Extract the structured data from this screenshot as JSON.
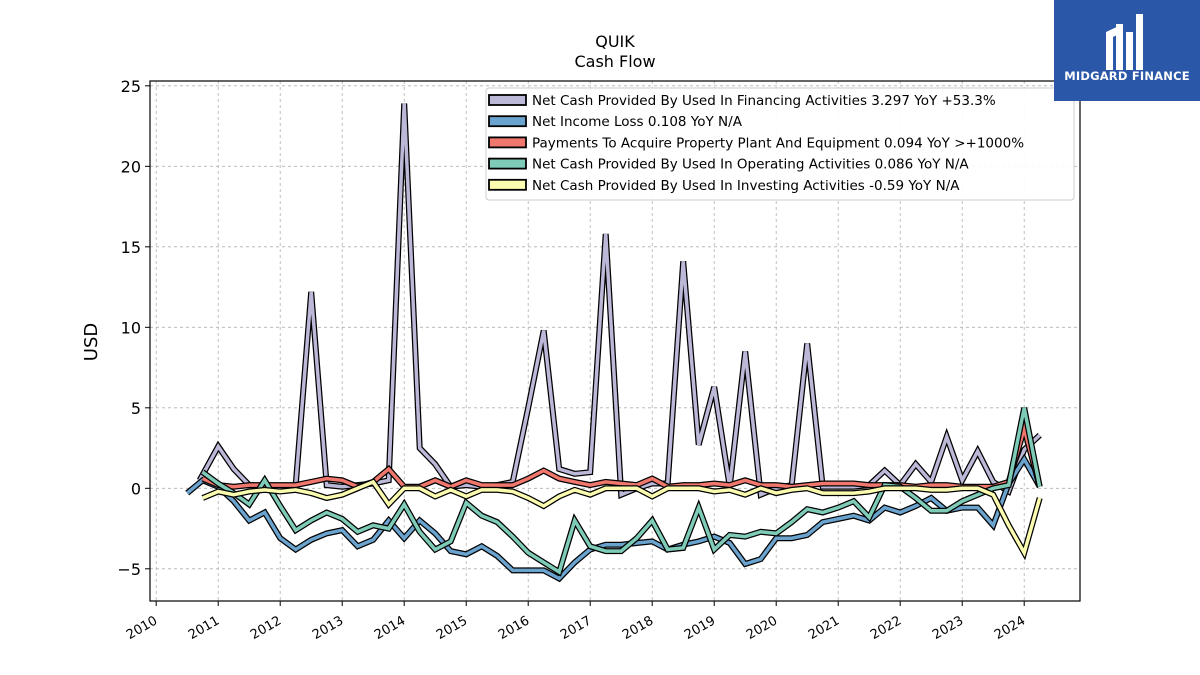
{
  "chart_data": {
    "type": "line",
    "title": "QUIK",
    "subtitle": "Cash Flow",
    "xlabel": "",
    "ylabel": "USD",
    "xlim": [
      2009.9,
      2024.9
    ],
    "ylim": [
      -7,
      25.3
    ],
    "yticks": [
      -5,
      0,
      5,
      10,
      15,
      20,
      25
    ],
    "yticklabels": [
      "−5",
      "0",
      "5",
      "10",
      "15",
      "20",
      "25"
    ],
    "xticks": [
      2010,
      2011,
      2012,
      2013,
      2014,
      2015,
      2016,
      2017,
      2018,
      2019,
      2020,
      2021,
      2022,
      2023,
      2024
    ],
    "xticklabels": [
      "2010",
      "2011",
      "2012",
      "2013",
      "2014",
      "2015",
      "2016",
      "2017",
      "2018",
      "2019",
      "2020",
      "2021",
      "2022",
      "2023",
      "2024"
    ],
    "grid": true,
    "legend_position": "top-right",
    "series": [
      {
        "name": "Net Cash Provided By Used In Financing Activities  3.297 YoY +53.3%",
        "color": "#bcb8d8",
        "points": [
          [
            2010.7,
            0.5
          ],
          [
            2011.0,
            2.6
          ],
          [
            2011.25,
            1.2
          ],
          [
            2011.5,
            0.2
          ],
          [
            2011.75,
            0.1
          ],
          [
            2012.0,
            0.1
          ],
          [
            2012.25,
            0.2
          ],
          [
            2012.5,
            12.2
          ],
          [
            2012.75,
            0.2
          ],
          [
            2013.0,
            0.1
          ],
          [
            2013.25,
            0.2
          ],
          [
            2013.5,
            0.3
          ],
          [
            2013.75,
            0.5
          ],
          [
            2014.0,
            23.9
          ],
          [
            2014.25,
            2.5
          ],
          [
            2014.5,
            1.5
          ],
          [
            2014.75,
            0.1
          ],
          [
            2015.0,
            0.2
          ],
          [
            2015.25,
            0.1
          ],
          [
            2015.5,
            0.2
          ],
          [
            2015.75,
            0.4
          ],
          [
            2016.0,
            5.0
          ],
          [
            2016.25,
            9.8
          ],
          [
            2016.5,
            1.2
          ],
          [
            2016.75,
            0.9
          ],
          [
            2017.0,
            1.0
          ],
          [
            2017.25,
            15.8
          ],
          [
            2017.5,
            -0.4
          ],
          [
            2017.75,
            0.0
          ],
          [
            2018.0,
            0.3
          ],
          [
            2018.25,
            0.3
          ],
          [
            2018.5,
            14.1
          ],
          [
            2018.75,
            2.7
          ],
          [
            2019.0,
            6.3
          ],
          [
            2019.25,
            0.1
          ],
          [
            2019.5,
            8.5
          ],
          [
            2019.75,
            -0.4
          ],
          [
            2020.0,
            0.0
          ],
          [
            2020.25,
            0.2
          ],
          [
            2020.5,
            9.0
          ],
          [
            2020.75,
            0.1
          ],
          [
            2021.0,
            0.1
          ],
          [
            2021.25,
            0.1
          ],
          [
            2021.5,
            0.2
          ],
          [
            2021.75,
            1.1
          ],
          [
            2022.0,
            0.2
          ],
          [
            2022.25,
            1.5
          ],
          [
            2022.5,
            0.4
          ],
          [
            2022.75,
            3.2
          ],
          [
            2023.0,
            0.5
          ],
          [
            2023.25,
            2.3
          ],
          [
            2023.5,
            0.4
          ],
          [
            2023.75,
            -0.2
          ],
          [
            2024.0,
            2.4
          ],
          [
            2024.25,
            3.3
          ]
        ]
      },
      {
        "name": "Net Income Loss  0.108 YoY N/A",
        "color": "#6ba3cf",
        "points": [
          [
            2010.5,
            -0.3
          ],
          [
            2010.75,
            0.5
          ],
          [
            2011.0,
            0.1
          ],
          [
            2011.25,
            -0.8
          ],
          [
            2011.5,
            -2.0
          ],
          [
            2011.75,
            -1.5
          ],
          [
            2012.0,
            -3.1
          ],
          [
            2012.25,
            -3.8
          ],
          [
            2012.5,
            -3.2
          ],
          [
            2012.75,
            -2.8
          ],
          [
            2013.0,
            -2.6
          ],
          [
            2013.25,
            -3.6
          ],
          [
            2013.5,
            -3.2
          ],
          [
            2013.75,
            -2.0
          ],
          [
            2014.0,
            -3.1
          ],
          [
            2014.25,
            -2.0
          ],
          [
            2014.5,
            -2.8
          ],
          [
            2014.75,
            -3.9
          ],
          [
            2015.0,
            -4.1
          ],
          [
            2015.25,
            -3.6
          ],
          [
            2015.5,
            -4.2
          ],
          [
            2015.75,
            -5.1
          ],
          [
            2016.0,
            -5.1
          ],
          [
            2016.25,
            -5.1
          ],
          [
            2016.5,
            -5.6
          ],
          [
            2016.75,
            -4.6
          ],
          [
            2017.0,
            -3.8
          ],
          [
            2017.25,
            -3.5
          ],
          [
            2017.5,
            -3.5
          ],
          [
            2017.75,
            -3.4
          ],
          [
            2018.0,
            -3.3
          ],
          [
            2018.25,
            -3.8
          ],
          [
            2018.5,
            -3.5
          ],
          [
            2018.75,
            -3.3
          ],
          [
            2019.0,
            -3.0
          ],
          [
            2019.25,
            -3.4
          ],
          [
            2019.5,
            -4.7
          ],
          [
            2019.75,
            -4.4
          ],
          [
            2020.0,
            -3.1
          ],
          [
            2020.25,
            -3.1
          ],
          [
            2020.5,
            -2.9
          ],
          [
            2020.75,
            -2.1
          ],
          [
            2021.0,
            -1.9
          ],
          [
            2021.25,
            -1.7
          ],
          [
            2021.5,
            -2.0
          ],
          [
            2021.75,
            -1.2
          ],
          [
            2022.0,
            -1.5
          ],
          [
            2022.25,
            -1.1
          ],
          [
            2022.5,
            -0.6
          ],
          [
            2022.75,
            -1.4
          ],
          [
            2023.0,
            -1.2
          ],
          [
            2023.25,
            -1.2
          ],
          [
            2023.5,
            -2.3
          ],
          [
            2023.75,
            0.3
          ],
          [
            2024.0,
            1.8
          ],
          [
            2024.25,
            0.1
          ]
        ]
      },
      {
        "name": "Payments To Acquire Property Plant And Equipment  0.094 YoY >+1000%",
        "color": "#f0776d",
        "points": [
          [
            2010.75,
            0.6
          ],
          [
            2011.0,
            0.2
          ],
          [
            2011.25,
            0.1
          ],
          [
            2011.5,
            0.2
          ],
          [
            2011.75,
            0.2
          ],
          [
            2012.0,
            0.2
          ],
          [
            2012.25,
            0.2
          ],
          [
            2012.5,
            0.4
          ],
          [
            2012.75,
            0.6
          ],
          [
            2013.0,
            0.5
          ],
          [
            2013.25,
            0.1
          ],
          [
            2013.5,
            0.4
          ],
          [
            2013.75,
            1.2
          ],
          [
            2014.0,
            0.1
          ],
          [
            2014.25,
            0.1
          ],
          [
            2014.5,
            0.5
          ],
          [
            2014.75,
            0.1
          ],
          [
            2015.0,
            0.5
          ],
          [
            2015.25,
            0.2
          ],
          [
            2015.5,
            0.2
          ],
          [
            2015.75,
            0.2
          ],
          [
            2016.0,
            0.6
          ],
          [
            2016.25,
            1.1
          ],
          [
            2016.5,
            0.6
          ],
          [
            2016.75,
            0.4
          ],
          [
            2017.0,
            0.2
          ],
          [
            2017.25,
            0.4
          ],
          [
            2017.5,
            0.3
          ],
          [
            2017.75,
            0.2
          ],
          [
            2018.0,
            0.6
          ],
          [
            2018.25,
            0.1
          ],
          [
            2018.5,
            0.2
          ],
          [
            2018.75,
            0.2
          ],
          [
            2019.0,
            0.3
          ],
          [
            2019.25,
            0.2
          ],
          [
            2019.5,
            0.5
          ],
          [
            2019.75,
            0.2
          ],
          [
            2020.0,
            0.2
          ],
          [
            2020.25,
            0.1
          ],
          [
            2020.5,
            0.2
          ],
          [
            2020.75,
            0.3
          ],
          [
            2021.0,
            0.3
          ],
          [
            2021.25,
            0.3
          ],
          [
            2021.5,
            0.2
          ],
          [
            2021.75,
            0.2
          ],
          [
            2022.0,
            0.2
          ],
          [
            2022.25,
            0.1
          ],
          [
            2022.5,
            0.2
          ],
          [
            2022.75,
            0.2
          ],
          [
            2023.0,
            0.1
          ],
          [
            2023.25,
            0.1
          ],
          [
            2023.5,
            0.1
          ],
          [
            2023.75,
            0.4
          ],
          [
            2024.0,
            3.7
          ],
          [
            2024.25,
            0.1
          ]
        ]
      },
      {
        "name": "Net Cash Provided By Used In Operating Activities  0.086 YoY N/A",
        "color": "#7ecbb8",
        "points": [
          [
            2010.75,
            1.0
          ],
          [
            2011.0,
            0.3
          ],
          [
            2011.25,
            -0.3
          ],
          [
            2011.5,
            -1.0
          ],
          [
            2011.75,
            0.5
          ],
          [
            2012.0,
            -1.1
          ],
          [
            2012.25,
            -2.6
          ],
          [
            2012.5,
            -2.0
          ],
          [
            2012.75,
            -1.5
          ],
          [
            2013.0,
            -1.9
          ],
          [
            2013.25,
            -2.7
          ],
          [
            2013.5,
            -2.3
          ],
          [
            2013.75,
            -2.5
          ],
          [
            2014.0,
            -1.0
          ],
          [
            2014.25,
            -2.7
          ],
          [
            2014.5,
            -3.8
          ],
          [
            2014.75,
            -3.3
          ],
          [
            2015.0,
            -0.9
          ],
          [
            2015.25,
            -1.7
          ],
          [
            2015.5,
            -2.1
          ],
          [
            2015.75,
            -3.0
          ],
          [
            2016.0,
            -4.0
          ],
          [
            2016.25,
            -4.6
          ],
          [
            2016.5,
            -5.2
          ],
          [
            2016.75,
            -2.0
          ],
          [
            2017.0,
            -3.6
          ],
          [
            2017.25,
            -3.9
          ],
          [
            2017.5,
            -3.9
          ],
          [
            2017.75,
            -3.1
          ],
          [
            2018.0,
            -2.0
          ],
          [
            2018.25,
            -3.8
          ],
          [
            2018.5,
            -3.7
          ],
          [
            2018.75,
            -1.2
          ],
          [
            2019.0,
            -3.8
          ],
          [
            2019.25,
            -2.9
          ],
          [
            2019.5,
            -3.0
          ],
          [
            2019.75,
            -2.7
          ],
          [
            2020.0,
            -2.8
          ],
          [
            2020.25,
            -2.1
          ],
          [
            2020.5,
            -1.3
          ],
          [
            2020.75,
            -1.5
          ],
          [
            2021.0,
            -1.2
          ],
          [
            2021.25,
            -0.8
          ],
          [
            2021.5,
            -1.8
          ],
          [
            2021.75,
            0.2
          ],
          [
            2022.0,
            0.1
          ],
          [
            2022.25,
            -0.6
          ],
          [
            2022.5,
            -1.4
          ],
          [
            2022.75,
            -1.4
          ],
          [
            2023.0,
            -0.8
          ],
          [
            2023.25,
            -0.4
          ],
          [
            2023.5,
            0.0
          ],
          [
            2023.75,
            0.2
          ],
          [
            2024.0,
            5.0
          ],
          [
            2024.25,
            0.1
          ]
        ]
      },
      {
        "name": "Net Cash Provided By Used In Investing Activities  -0.59 YoY N/A",
        "color": "#fcfcb0",
        "points": [
          [
            2010.75,
            -0.6
          ],
          [
            2011.0,
            -0.2
          ],
          [
            2011.25,
            -0.4
          ],
          [
            2011.5,
            -0.2
          ],
          [
            2011.75,
            -0.1
          ],
          [
            2012.0,
            -0.2
          ],
          [
            2012.25,
            -0.1
          ],
          [
            2012.5,
            -0.3
          ],
          [
            2012.75,
            -0.6
          ],
          [
            2013.0,
            -0.4
          ],
          [
            2013.25,
            0.0
          ],
          [
            2013.5,
            0.4
          ],
          [
            2013.75,
            -1.0
          ],
          [
            2014.0,
            0.0
          ],
          [
            2014.25,
            0.0
          ],
          [
            2014.5,
            -0.5
          ],
          [
            2014.75,
            -0.1
          ],
          [
            2015.0,
            -0.5
          ],
          [
            2015.25,
            -0.1
          ],
          [
            2015.5,
            -0.1
          ],
          [
            2015.75,
            -0.2
          ],
          [
            2016.0,
            -0.6
          ],
          [
            2016.25,
            -1.1
          ],
          [
            2016.5,
            -0.5
          ],
          [
            2016.75,
            -0.1
          ],
          [
            2017.0,
            -0.4
          ],
          [
            2017.25,
            0.0
          ],
          [
            2017.5,
            0.0
          ],
          [
            2017.75,
            0.0
          ],
          [
            2018.0,
            -0.5
          ],
          [
            2018.25,
            0.0
          ],
          [
            2018.5,
            0.0
          ],
          [
            2018.75,
            0.0
          ],
          [
            2019.0,
            -0.2
          ],
          [
            2019.25,
            -0.1
          ],
          [
            2019.5,
            -0.4
          ],
          [
            2019.75,
            0.0
          ],
          [
            2020.0,
            -0.3
          ],
          [
            2020.25,
            -0.1
          ],
          [
            2020.5,
            0.0
          ],
          [
            2020.75,
            -0.3
          ],
          [
            2021.0,
            -0.3
          ],
          [
            2021.25,
            -0.3
          ],
          [
            2021.5,
            -0.2
          ],
          [
            2021.75,
            0.0
          ],
          [
            2022.0,
            0.0
          ],
          [
            2022.25,
            0.0
          ],
          [
            2022.5,
            -0.1
          ],
          [
            2022.75,
            -0.1
          ],
          [
            2023.0,
            0.0
          ],
          [
            2023.25,
            0.0
          ],
          [
            2023.5,
            -0.4
          ],
          [
            2023.75,
            -2.3
          ],
          [
            2024.0,
            -4.0
          ],
          [
            2024.25,
            -0.6
          ]
        ]
      }
    ]
  },
  "brand": {
    "name": "MIDGARD FINANCE",
    "color": "#2b57a8",
    "icon": "midgard-logo-icon"
  }
}
